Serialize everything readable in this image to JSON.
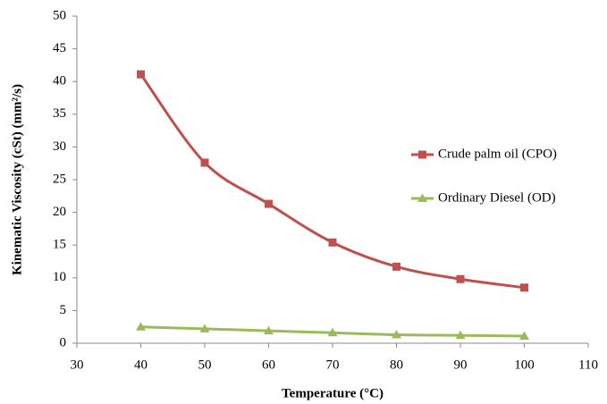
{
  "chart_data": {
    "type": "line",
    "xlabel": "Temperature (°C)",
    "ylabel": "Kinematic Viscosity (cSt) (mm²/s)",
    "x": [
      40,
      50,
      60,
      70,
      80,
      90,
      100
    ],
    "series": [
      {
        "name": "Crude palm oil (CPO)",
        "color": "#c0504d",
        "marker": "square",
        "values": [
          41.1,
          27.6,
          21.3,
          15.4,
          11.7,
          9.8,
          8.5
        ]
      },
      {
        "name": "Ordinary Diesel (OD)",
        "color": "#9bbb59",
        "marker": "triangle",
        "values": [
          2.5,
          2.2,
          1.9,
          1.6,
          1.3,
          1.2,
          1.1
        ]
      }
    ],
    "xlim": [
      30,
      110
    ],
    "xticks": [
      30,
      40,
      50,
      60,
      70,
      80,
      90,
      100,
      110
    ],
    "ylim": [
      0,
      50
    ],
    "yticks": [
      0,
      5,
      10,
      15,
      20,
      25,
      30,
      35,
      40,
      45,
      50
    ],
    "smooth": true,
    "legend": "right"
  }
}
